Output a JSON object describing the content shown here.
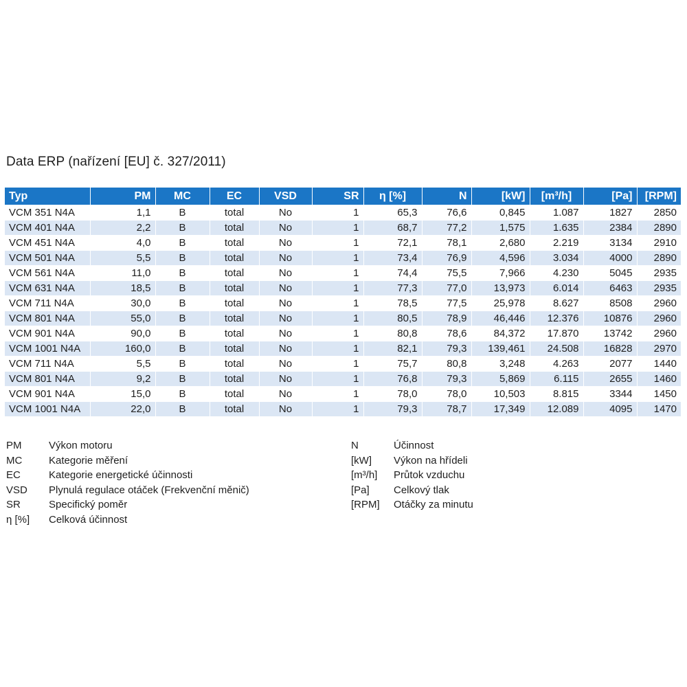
{
  "title": "Data ERP (nařízení [EU] č. 327/2011)",
  "table": {
    "headers": [
      "Typ",
      "PM",
      "MC",
      "EC",
      "VSD",
      "SR",
      "η [%]",
      "N",
      "[kW]",
      "[m³/h]",
      "[Pa]",
      "[RPM]"
    ],
    "rows": [
      [
        "VCM 351 N4A",
        "1,1",
        "B",
        "total",
        "No",
        "1",
        "65,3",
        "76,6",
        "0,845",
        "1.087",
        "1827",
        "2850"
      ],
      [
        "VCM 401 N4A",
        "2,2",
        "B",
        "total",
        "No",
        "1",
        "68,7",
        "77,2",
        "1,575",
        "1.635",
        "2384",
        "2890"
      ],
      [
        "VCM 451 N4A",
        "4,0",
        "B",
        "total",
        "No",
        "1",
        "72,1",
        "78,1",
        "2,680",
        "2.219",
        "3134",
        "2910"
      ],
      [
        "VCM 501 N4A",
        "5,5",
        "B",
        "total",
        "No",
        "1",
        "73,4",
        "76,9",
        "4,596",
        "3.034",
        "4000",
        "2890"
      ],
      [
        "VCM 561 N4A",
        "11,0",
        "B",
        "total",
        "No",
        "1",
        "74,4",
        "75,5",
        "7,966",
        "4.230",
        "5045",
        "2935"
      ],
      [
        "VCM 631 N4A",
        "18,5",
        "B",
        "total",
        "No",
        "1",
        "77,3",
        "77,0",
        "13,973",
        "6.014",
        "6463",
        "2935"
      ],
      [
        "VCM 711 N4A",
        "30,0",
        "B",
        "total",
        "No",
        "1",
        "78,5",
        "77,5",
        "25,978",
        "8.627",
        "8508",
        "2960"
      ],
      [
        "VCM 801 N4A",
        "55,0",
        "B",
        "total",
        "No",
        "1",
        "80,5",
        "78,9",
        "46,446",
        "12.376",
        "10876",
        "2960"
      ],
      [
        "VCM 901 N4A",
        "90,0",
        "B",
        "total",
        "No",
        "1",
        "80,8",
        "78,6",
        "84,372",
        "17.870",
        "13742",
        "2960"
      ],
      [
        "VCM 1001 N4A",
        "160,0",
        "B",
        "total",
        "No",
        "1",
        "82,1",
        "79,3",
        "139,461",
        "24.508",
        "16828",
        "2970"
      ],
      [
        "VCM 711 N4A",
        "5,5",
        "B",
        "total",
        "No",
        "1",
        "75,7",
        "80,8",
        "3,248",
        "4.263",
        "2077",
        "1440"
      ],
      [
        "VCM 801 N4A",
        "9,2",
        "B",
        "total",
        "No",
        "1",
        "76,8",
        "79,3",
        "5,869",
        "6.115",
        "2655",
        "1460"
      ],
      [
        "VCM 901 N4A",
        "15,0",
        "B",
        "total",
        "No",
        "1",
        "78,0",
        "78,0",
        "10,503",
        "8.815",
        "3344",
        "1450"
      ],
      [
        "VCM 1001 N4A",
        "22,0",
        "B",
        "total",
        "No",
        "1",
        "79,3",
        "78,7",
        "17,349",
        "12.089",
        "4095",
        "1470"
      ]
    ]
  },
  "legend_left": [
    {
      "key": "PM",
      "text": "Výkon motoru"
    },
    {
      "key": "MC",
      "text": "Kategorie měření"
    },
    {
      "key": "EC",
      "text": "Kategorie energetické účinnosti"
    },
    {
      "key": "VSD",
      "text": "Plynulá regulace otáček (Frekvenční měnič)"
    },
    {
      "key": "SR",
      "text": "Specifický poměr"
    },
    {
      "key": "η [%]",
      "text": "Celková účinnost"
    }
  ],
  "legend_right": [
    {
      "key": "N",
      "text": "Účinnost"
    },
    {
      "key": "[kW]",
      "text": "Výkon na hřídeli"
    },
    {
      "key": "[m³/h]",
      "text": "Průtok vzduchu"
    },
    {
      "key": "[Pa]",
      "text": "Celkový tlak"
    },
    {
      "key": "[RPM]",
      "text": "Otáčky za minutu"
    }
  ],
  "colors": {
    "header_bg": "#1b76c6",
    "stripe_bg": "#dbe6f4"
  }
}
